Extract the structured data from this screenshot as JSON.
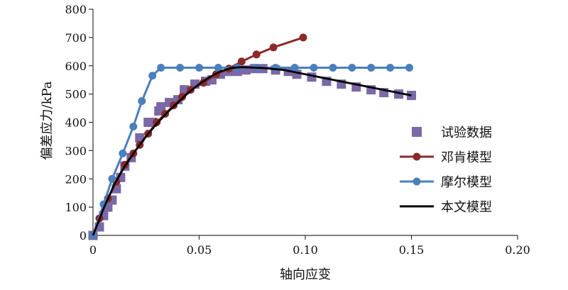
{
  "chart_data": {
    "type": "scatter",
    "title": "",
    "xlabel": "轴向应变",
    "ylabel": "偏差应力/kPa",
    "xlim": [
      0,
      0.2
    ],
    "ylim": [
      0,
      800
    ],
    "x_ticks": [
      0,
      0.05,
      0.1,
      0.15,
      0.2
    ],
    "x_tick_labels": [
      "0",
      "0.05",
      "0.10",
      "0.15",
      "0.20"
    ],
    "y_ticks": [
      0,
      100,
      200,
      300,
      400,
      500,
      600,
      700,
      800
    ],
    "y_tick_labels": [
      "0",
      "100",
      "200",
      "300",
      "400",
      "500",
      "600",
      "700",
      "800"
    ],
    "grid": false,
    "legend_position": "right",
    "series": [
      {
        "name": "试验数据",
        "kind": "scatter",
        "marker": "square",
        "color": "#7b68a6",
        "points": [
          [
            0.0,
            0
          ],
          [
            0.003,
            30
          ],
          [
            0.005,
            70
          ],
          [
            0.007,
            100
          ],
          [
            0.009,
            125
          ],
          [
            0.011,
            165
          ],
          [
            0.013,
            205
          ],
          [
            0.015,
            245
          ],
          [
            0.018,
            275
          ],
          [
            0.022,
            345
          ],
          [
            0.026,
            400
          ],
          [
            0.028,
            400
          ],
          [
            0.031,
            440
          ],
          [
            0.032,
            455
          ],
          [
            0.036,
            470
          ],
          [
            0.04,
            480
          ],
          [
            0.043,
            515
          ],
          [
            0.048,
            535
          ],
          [
            0.053,
            545
          ],
          [
            0.056,
            550
          ],
          [
            0.06,
            570
          ],
          [
            0.064,
            580
          ],
          [
            0.068,
            580
          ],
          [
            0.072,
            585
          ],
          [
            0.076,
            590
          ],
          [
            0.08,
            590
          ],
          [
            0.086,
            585
          ],
          [
            0.092,
            580
          ],
          [
            0.096,
            570
          ],
          [
            0.103,
            560
          ],
          [
            0.11,
            545
          ],
          [
            0.117,
            535
          ],
          [
            0.124,
            525
          ],
          [
            0.131,
            515
          ],
          [
            0.137,
            505
          ],
          [
            0.144,
            500
          ],
          [
            0.15,
            495
          ]
        ]
      },
      {
        "name": "邓肯模型",
        "kind": "line-marker",
        "marker": "circle",
        "color": "#8b2a2a",
        "points": [
          [
            0.0,
            0
          ],
          [
            0.003,
            60
          ],
          [
            0.007,
            130
          ],
          [
            0.011,
            190
          ],
          [
            0.015,
            250
          ],
          [
            0.019,
            290
          ],
          [
            0.022,
            320
          ],
          [
            0.026,
            360
          ],
          [
            0.03,
            400
          ],
          [
            0.034,
            430
          ],
          [
            0.038,
            460
          ],
          [
            0.042,
            490
          ],
          [
            0.046,
            515
          ],
          [
            0.052,
            540
          ],
          [
            0.058,
            570
          ],
          [
            0.064,
            590
          ],
          [
            0.07,
            615
          ],
          [
            0.077,
            640
          ],
          [
            0.085,
            665
          ],
          [
            0.099,
            700
          ]
        ]
      },
      {
        "name": "摩尔模型",
        "kind": "line-marker",
        "marker": "circle",
        "color": "#4a7fbd",
        "points": [
          [
            0.0,
            0
          ],
          [
            0.005,
            110
          ],
          [
            0.009,
            200
          ],
          [
            0.014,
            290
          ],
          [
            0.019,
            385
          ],
          [
            0.023,
            475
          ],
          [
            0.028,
            565
          ],
          [
            0.032,
            593
          ],
          [
            0.041,
            593
          ],
          [
            0.05,
            593
          ],
          [
            0.059,
            593
          ],
          [
            0.068,
            593
          ],
          [
            0.077,
            593
          ],
          [
            0.086,
            593
          ],
          [
            0.095,
            593
          ],
          [
            0.104,
            593
          ],
          [
            0.113,
            593
          ],
          [
            0.122,
            593
          ],
          [
            0.131,
            593
          ],
          [
            0.14,
            593
          ],
          [
            0.149,
            593
          ]
        ]
      },
      {
        "name": "本文模型",
        "kind": "line",
        "color": "#000000",
        "points": [
          [
            0.0,
            0
          ],
          [
            0.005,
            95
          ],
          [
            0.01,
            180
          ],
          [
            0.015,
            245
          ],
          [
            0.02,
            300
          ],
          [
            0.025,
            350
          ],
          [
            0.03,
            395
          ],
          [
            0.035,
            435
          ],
          [
            0.04,
            470
          ],
          [
            0.045,
            505
          ],
          [
            0.05,
            535
          ],
          [
            0.055,
            560
          ],
          [
            0.06,
            580
          ],
          [
            0.065,
            592
          ],
          [
            0.07,
            595
          ],
          [
            0.08,
            592
          ],
          [
            0.09,
            585
          ],
          [
            0.1,
            570
          ],
          [
            0.11,
            555
          ],
          [
            0.12,
            540
          ],
          [
            0.13,
            525
          ],
          [
            0.14,
            510
          ],
          [
            0.15,
            495
          ]
        ]
      }
    ]
  }
}
